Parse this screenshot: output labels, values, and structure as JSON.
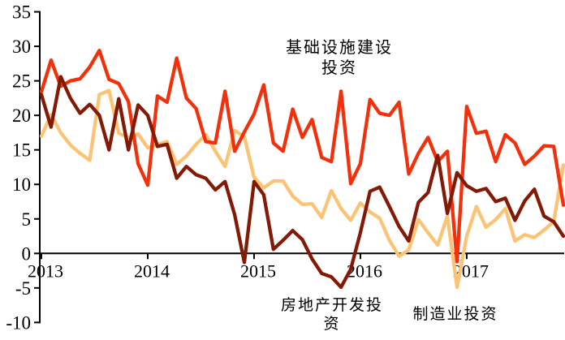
{
  "chart_data": {
    "type": "line",
    "title": "",
    "xlabel": "",
    "ylabel": "",
    "grid": false,
    "legend_position": "inline-annotations",
    "x_axis": {
      "years": [
        "2013",
        "2014",
        "2015",
        "2016",
        "2017"
      ],
      "points_per_year": 11,
      "start": "2013-02",
      "note": "monthly points, Feb-Dec each year"
    },
    "y_axis": {
      "min": -10,
      "max": 35,
      "step": 5,
      "tick_labels": [
        "35",
        "30",
        "25",
        "20",
        "15",
        "10",
        "5",
        "0",
        "-5",
        "-10"
      ]
    },
    "series": [
      {
        "name": "基础设施建设投资",
        "key": "infrastructure",
        "color": "#f2300b",
        "z": 2,
        "values": [
          23.4,
          28.0,
          24.2,
          25.0,
          25.3,
          27.0,
          29.4,
          25.2,
          24.6,
          22.0,
          13.0,
          9.9,
          22.8,
          21.9,
          28.3,
          22.5,
          21.0,
          16.2,
          16.0,
          23.5,
          14.8,
          17.6,
          20.2,
          24.4,
          16.0,
          14.8,
          20.9,
          16.8,
          19.4,
          13.9,
          13.3,
          23.5,
          10.1,
          13.0,
          22.3,
          20.3,
          20.0,
          21.9,
          11.5,
          14.5,
          16.8,
          13.3,
          14.8,
          -1.2,
          21.3,
          17.4,
          17.7,
          13.3,
          17.2,
          16.0,
          12.9,
          14.1,
          15.6,
          15.5,
          7.0
        ]
      },
      {
        "name": "房地产开发投资",
        "key": "real_estate",
        "color": "#821a06",
        "z": 3,
        "values": [
          23.0,
          18.3,
          25.6,
          22.5,
          20.3,
          21.6,
          20.0,
          15.0,
          22.4,
          15.0,
          21.5,
          20.0,
          15.5,
          15.8,
          10.9,
          12.6,
          11.4,
          10.9,
          9.2,
          10.4,
          5.6,
          -1.3,
          10.4,
          8.5,
          0.6,
          1.9,
          3.3,
          2.0,
          -0.8,
          -2.9,
          -3.4,
          -4.9,
          -2.3,
          3.0,
          9.0,
          9.6,
          6.8,
          3.9,
          1.8,
          7.4,
          8.8,
          14.2,
          5.8,
          11.7,
          9.8,
          9.0,
          9.4,
          7.5,
          8.0,
          4.8,
          7.6,
          9.3,
          5.4,
          4.6,
          2.5
        ]
      },
      {
        "name": "制造业投资",
        "key": "manufacturing",
        "color": "#fbc373",
        "z": 1,
        "values": [
          17.0,
          20.1,
          17.5,
          15.7,
          14.5,
          13.5,
          23.0,
          23.6,
          17.4,
          16.8,
          17.3,
          15.3,
          15.8,
          16.2,
          12.9,
          14.1,
          15.8,
          17.2,
          14.8,
          12.6,
          17.8,
          16.9,
          11.0,
          9.5,
          10.5,
          10.5,
          8.3,
          7.1,
          7.2,
          5.2,
          9.1,
          6.5,
          4.8,
          7.3,
          6.0,
          5.1,
          1.9,
          -0.4,
          0.5,
          4.9,
          3.0,
          1.2,
          5.4,
          -4.9,
          2.5,
          6.8,
          3.8,
          4.9,
          6.5,
          1.8,
          2.7,
          2.3,
          3.4,
          4.6,
          12.8
        ]
      }
    ]
  },
  "annotations": {
    "infrastructure": {
      "line1": "基础设施建设",
      "line2": "投资"
    },
    "real_estate": {
      "line1": "房地产开发投",
      "line2": "资"
    },
    "manufacturing": {
      "line1": "制造业投资"
    }
  },
  "colors": {
    "infrastructure": "#f2300b",
    "real_estate": "#821a06",
    "manufacturing": "#fbc373",
    "axis": "#000000",
    "background": "#ffffff"
  }
}
